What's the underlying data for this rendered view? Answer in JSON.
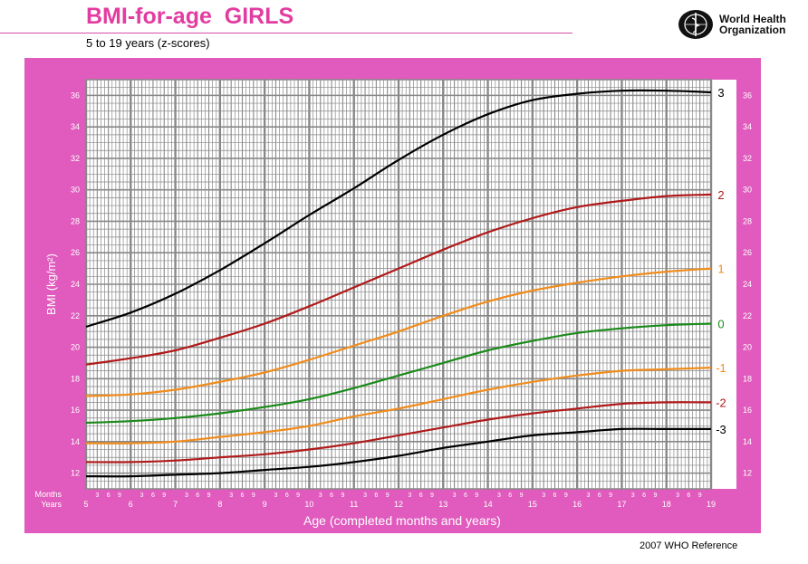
{
  "header": {
    "title": "BMI-for-age  GIRLS",
    "subtitle": "5 to 19 years (z-scores)",
    "org_name_line1": "World Health",
    "org_name_line2": "Organization"
  },
  "footer": {
    "reference": "2007 WHO Reference"
  },
  "colors": {
    "frame": "#e05bbd",
    "grid": "#888888",
    "z0": "#1a8a1a",
    "z1": "#f08c1c",
    "z2": "#b01a1a",
    "z3": "#000000",
    "title": "#e33ca0"
  },
  "chart_data": {
    "type": "line",
    "title": "BMI-for-age  GIRLS",
    "subtitle": "5 to 19 years (z-scores)",
    "xlabel": "Age (completed months and years)",
    "ylabel": "BMI (kg/m²)",
    "xlim": [
      5,
      19
    ],
    "ylim": [
      11,
      37
    ],
    "x_tick_labels": [
      "5",
      "6",
      "7",
      "8",
      "9",
      "10",
      "11",
      "12",
      "13",
      "14",
      "15",
      "16",
      "17",
      "18",
      "19"
    ],
    "month_tick_labels": [
      "3",
      "6",
      "9"
    ],
    "row_label_months": "Months",
    "row_label_years": "Years",
    "y_tick_labels": [
      "12",
      "14",
      "16",
      "18",
      "20",
      "22",
      "24",
      "26",
      "28",
      "30",
      "32",
      "34",
      "36"
    ],
    "grid": true,
    "x": [
      5,
      6,
      7,
      8,
      9,
      10,
      11,
      12,
      13,
      14,
      15,
      16,
      17,
      18,
      19
    ],
    "series": [
      {
        "name": "3",
        "color": "#000000",
        "values": [
          21.3,
          22.2,
          23.4,
          24.9,
          26.6,
          28.4,
          30.1,
          31.9,
          33.5,
          34.8,
          35.7,
          36.1,
          36.3,
          36.3,
          36.2
        ]
      },
      {
        "name": "2",
        "color": "#b01a1a",
        "values": [
          18.9,
          19.3,
          19.8,
          20.6,
          21.5,
          22.6,
          23.8,
          25.0,
          26.2,
          27.3,
          28.2,
          28.9,
          29.3,
          29.6,
          29.7
        ]
      },
      {
        "name": "1",
        "color": "#f08c1c",
        "values": [
          16.9,
          17.0,
          17.3,
          17.8,
          18.4,
          19.2,
          20.1,
          21.0,
          22.0,
          22.9,
          23.6,
          24.1,
          24.5,
          24.8,
          25.0
        ]
      },
      {
        "name": "0",
        "color": "#1a8a1a",
        "values": [
          15.2,
          15.3,
          15.5,
          15.8,
          16.2,
          16.7,
          17.4,
          18.2,
          19.0,
          19.8,
          20.4,
          20.9,
          21.2,
          21.4,
          21.5
        ]
      },
      {
        "name": "-1",
        "color": "#f08c1c",
        "values": [
          13.9,
          13.9,
          14.0,
          14.3,
          14.6,
          15.0,
          15.6,
          16.1,
          16.7,
          17.3,
          17.8,
          18.2,
          18.5,
          18.6,
          18.7
        ]
      },
      {
        "name": "-2",
        "color": "#b01a1a",
        "values": [
          12.7,
          12.7,
          12.8,
          13.0,
          13.2,
          13.5,
          13.9,
          14.4,
          14.9,
          15.4,
          15.8,
          16.1,
          16.4,
          16.5,
          16.5
        ]
      },
      {
        "name": "-3",
        "color": "#000000",
        "values": [
          11.8,
          11.8,
          11.9,
          12.0,
          12.2,
          12.4,
          12.7,
          13.1,
          13.6,
          14.0,
          14.4,
          14.6,
          14.8,
          14.8,
          14.8
        ]
      }
    ]
  }
}
